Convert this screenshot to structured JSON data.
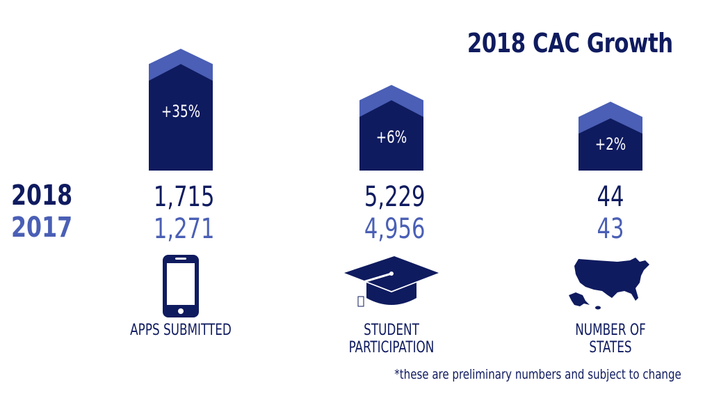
{
  "chart_data": {
    "type": "bar",
    "title": "2018 CAC Growth",
    "categories": [
      "APPS SUBMITTED",
      "STUDENT PARTICIPATION",
      "NUMBER OF STATES"
    ],
    "series": [
      {
        "name": "2018",
        "values": [
          1715,
          5229,
          44
        ]
      },
      {
        "name": "2017",
        "values": [
          1271,
          4956,
          43
        ]
      }
    ],
    "growth": [
      "+35%",
      "+6%",
      "+2%"
    ],
    "values_2018_display": [
      "1,715",
      "5,229",
      "44"
    ],
    "values_2017_display": [
      "1,271",
      "4,956",
      "43"
    ],
    "row_labels": [
      "2018",
      "2017"
    ],
    "footnote": "*these are preliminary numbers and subject to change",
    "colors": {
      "dark": "#0f1b5f",
      "light": "#4a5fb5"
    },
    "icons": [
      "smartphone-icon",
      "graduation-cap-icon",
      "usa-map-icon"
    ]
  }
}
